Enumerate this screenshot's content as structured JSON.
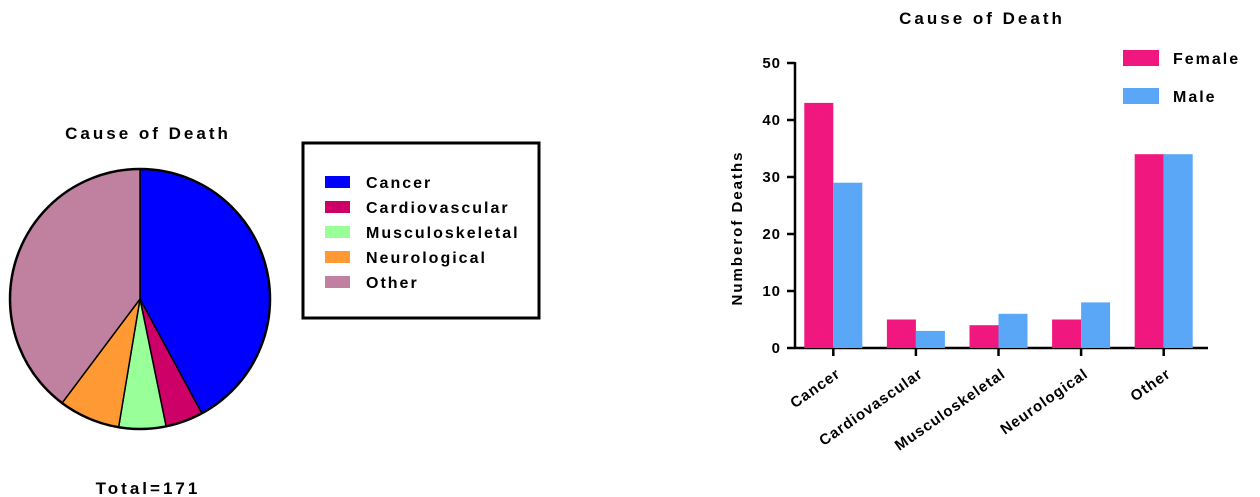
{
  "chart_data": [
    {
      "type": "pie",
      "title": "Cause of Death",
      "categories": [
        "Cancer",
        "Cardiovascular",
        "Musculoskeletal",
        "Neurological",
        "Other"
      ],
      "values": [
        72,
        8,
        10,
        13,
        68
      ],
      "colors": [
        "#0000ff",
        "#cc0066",
        "#99ff99",
        "#ff9933",
        "#c080a0"
      ],
      "total_label": "Total=171",
      "legend": "right"
    },
    {
      "type": "bar",
      "title": "Cause of Death",
      "categories": [
        "Cancer",
        "Cardiovascular",
        "Musculoskeletal",
        "Neurological",
        "Other"
      ],
      "series": [
        {
          "name": "Female",
          "values": [
            43,
            5,
            4,
            5,
            34
          ],
          "color": "#f0187e"
        },
        {
          "name": "Male",
          "values": [
            29,
            3,
            6,
            8,
            34
          ],
          "color": "#5aa7f8"
        }
      ],
      "xlabel": "",
      "ylabel": "Numberof Deaths",
      "ylim": [
        0,
        50
      ],
      "yticks": [
        0,
        10,
        20,
        30,
        40,
        50
      ],
      "legend": "top-right",
      "grid": false
    }
  ]
}
